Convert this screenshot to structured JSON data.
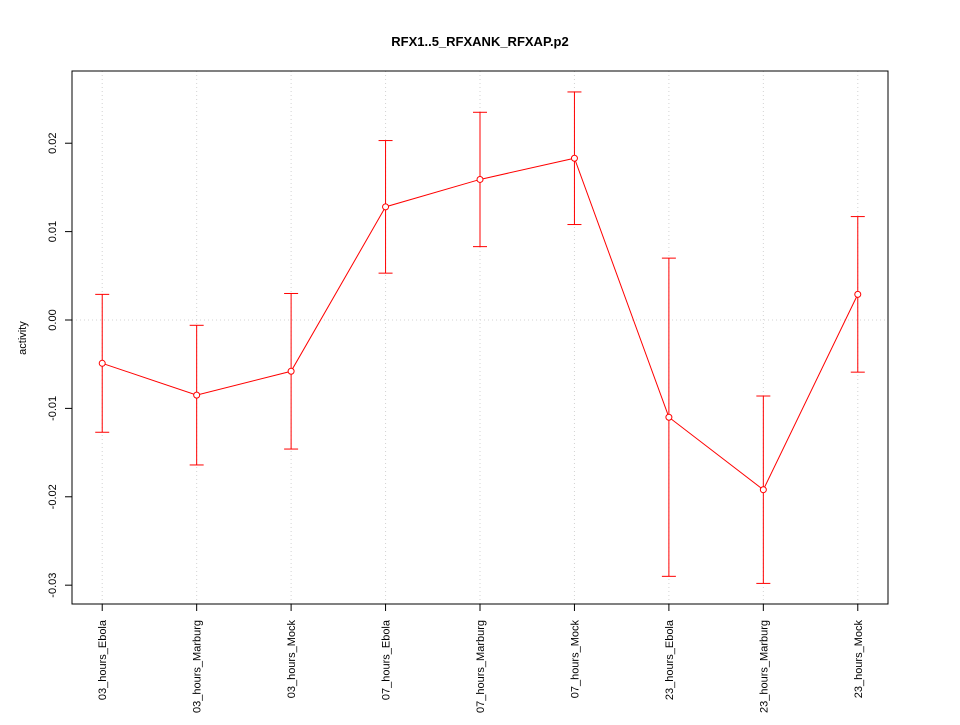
{
  "chart_data": {
    "type": "line",
    "title": "RFX1..5_RFXANK_RFXAP.p2",
    "y_label": "activity",
    "categories": [
      "03_hours_Ebola",
      "03_hours_Marburg",
      "03_hours_Mock",
      "07_hours_Ebola",
      "07_hours_Marburg",
      "07_hours_Mock",
      "23_hours_Ebola",
      "23_hours_Marburg",
      "23_hours_Mock"
    ],
    "series": [
      {
        "color": "#ff0000",
        "values": [
          -0.0049,
          -0.0085,
          -0.0058,
          0.0128,
          0.0159,
          0.0183,
          -0.011,
          -0.0192,
          0.0029
        ],
        "errors": [
          0.0078,
          0.0079,
          0.0088,
          0.0075,
          0.0076,
          0.0075,
          0.018,
          0.0106,
          0.0088
        ]
      }
    ],
    "ylim": [
      -0.03213,
      0.02817
    ],
    "yticks": [
      -0.03,
      -0.02,
      -0.01,
      {
        "value": 0,
        "label": "0.00"
      },
      0.01,
      0.02
    ],
    "reference_line": 0,
    "grid": true
  }
}
